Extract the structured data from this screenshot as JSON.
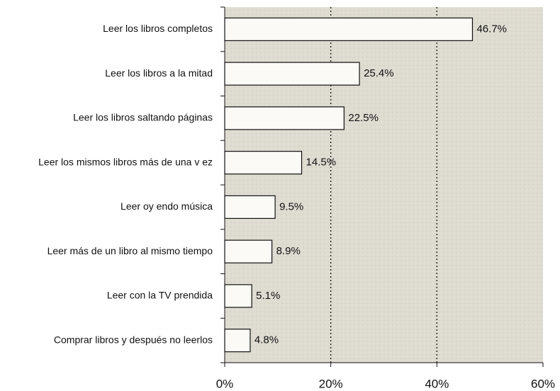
{
  "chart_data": {
    "type": "hbar",
    "categories": [
      "Leer los libros completos",
      "Leer los libros a la mitad",
      "Leer los libros saltando páginas",
      "Leer los mismos libros más de una v ez",
      "Leer oy endo música",
      "Leer más de un libro al mismo tiempo",
      "Leer con la TV prendida",
      "Comprar libros y  después no leerlos"
    ],
    "values": [
      46.7,
      25.4,
      22.5,
      14.5,
      9.5,
      8.9,
      5.1,
      4.8
    ],
    "value_labels": [
      "46.7%",
      "25.4%",
      "22.5%",
      "14.5%",
      "9.5%",
      "8.9%",
      "5.1%",
      "4.8%"
    ],
    "color": "#fbfaf6",
    "xlim": [
      0,
      60
    ],
    "xticks": [
      {
        "value": 0,
        "label": "0%"
      },
      {
        "value": 20,
        "label": "20%"
      },
      {
        "value": 40,
        "label": "40%"
      },
      {
        "value": 60,
        "label": "60%"
      }
    ],
    "grid": true
  }
}
